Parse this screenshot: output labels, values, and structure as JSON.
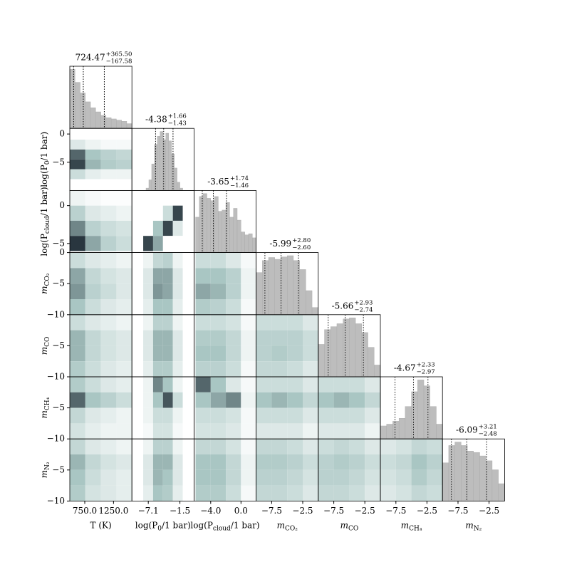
{
  "chart_data": {
    "type": "corner",
    "hist_color": "#bdbdbd",
    "quantile_color": "#000000",
    "cmap": [
      "#ffffff",
      "#a9c6c3",
      "#1b2630"
    ],
    "params": [
      {
        "label": {
          "main": "T (K)"
        },
        "lim": [
          490,
          1570
        ],
        "xticks": [
          {
            "value": 750,
            "label": "750.0"
          },
          {
            "value": 1250,
            "label": "1250.0"
          }
        ],
        "hist": {
          "bins": [
            490,
            580,
            670,
            760,
            850,
            940,
            1030,
            1120,
            1210,
            1300,
            1390,
            1480,
            1570
          ],
          "values": [
            100,
            78,
            60,
            45,
            35,
            28,
            22,
            18,
            16,
            14,
            12,
            8
          ]
        },
        "median": 724.47,
        "plus": {
          "value": 365.5,
          "label": "+365.50"
        },
        "minus": {
          "value": 167.58,
          "label": "−167.58"
        },
        "grid_edges": [
          490,
          760,
          1030,
          1300,
          1570
        ]
      },
      {
        "label": {
          "main": "log(P",
          "sub": "0",
          "tail": "/1 bar)"
        },
        "lim": [
          -10,
          1
        ],
        "xticks": [
          {
            "value": -7.1,
            "label": "−7.1"
          },
          {
            "value": -1.5,
            "label": "−1.5"
          }
        ],
        "yticks": [
          0,
          {
            "value": -5,
            "label": "−5"
          }
        ],
        "hist": {
          "bins": [
            -7.5,
            -7,
            -6.5,
            -6,
            -5.5,
            -5,
            -4.5,
            -4,
            -3.5,
            -3,
            -2.5,
            -2,
            -1.5,
            -1
          ],
          "values": [
            4,
            18,
            45,
            78,
            92,
            100,
            86,
            97,
            84,
            62,
            38,
            14,
            4
          ]
        },
        "median": -4.38,
        "plus": {
          "value": 1.66,
          "label": "+1.66"
        },
        "minus": {
          "value": 1.43,
          "label": "−1.43"
        },
        "grid_edges": [
          -8,
          -6.25,
          -4.5,
          -2.75,
          -1
        ],
        "density": [
          [
            [
              0.2,
              0.1,
              0.05,
              0.05
            ],
            [
              0.8,
              0.5,
              0.4,
              0.35
            ],
            [
              0.9,
              0.55,
              0.45,
              0.4
            ],
            [
              0.3,
              0.15,
              0.1,
              0.1
            ]
          ]
        ]
      },
      {
        "label": {
          "main": "log(P",
          "sub": "cloud",
          "tail": "/1 bar)"
        },
        "lim": [
          -6.2,
          2
        ],
        "xticks": [
          {
            "value": -4,
            "label": "−4.0"
          },
          {
            "value": 0,
            "label": "0.0"
          }
        ],
        "yticks": [
          0,
          {
            "value": -5,
            "label": "−5"
          }
        ],
        "hist": {
          "bins": [
            -6,
            -5.5,
            -5,
            -4.5,
            -4,
            -3.5,
            -3,
            -2.5,
            -2,
            -1.5,
            -1,
            -0.5,
            0,
            0.5,
            1,
            1.5,
            2
          ],
          "values": [
            60,
            95,
            100,
            92,
            88,
            95,
            70,
            72,
            85,
            60,
            75,
            55,
            35,
            30,
            32,
            25
          ]
        },
        "median": -3.65,
        "plus": {
          "value": 1.74,
          "label": "+1.74"
        },
        "minus": {
          "value": 1.46,
          "label": "−1.46"
        },
        "grid_edges": [
          -6,
          -4,
          -2,
          0,
          2
        ],
        "density": [
          [
            [
              0.1,
              0.05,
              0.02,
              0.02
            ],
            [
              0.4,
              0.2,
              0.15,
              0.1
            ],
            [
              0.7,
              0.4,
              0.3,
              0.25
            ],
            [
              0.95,
              0.6,
              0.4,
              0.3
            ]
          ],
          [
            [
              0,
              0,
              0,
              0
            ],
            [
              0,
              0,
              0.3,
              0.9
            ],
            [
              0,
              0.5,
              0.9,
              0.2
            ],
            [
              0.9,
              0.6,
              0,
              0
            ]
          ]
        ]
      },
      {
        "label": {
          "main": "m",
          "sub": "CO₂"
        },
        "lim": [
          -10,
          0
        ],
        "xticks": [
          {
            "value": -7.5,
            "label": "−7.5"
          },
          {
            "value": -2.5,
            "label": "−2.5"
          }
        ],
        "yticks": [
          0,
          {
            "value": -5,
            "label": "−5"
          },
          {
            "value": -10,
            "label": "−10"
          }
        ],
        "hist": {
          "bins": [
            -10,
            -9,
            -8,
            -7,
            -6,
            -5,
            -4,
            -3,
            -2,
            -1,
            0
          ],
          "values": [
            70,
            90,
            95,
            92,
            96,
            98,
            90,
            75,
            40,
            12
          ]
        },
        "median": -5.99,
        "plus": {
          "value": 2.8,
          "label": "+2.80"
        },
        "minus": {
          "value": 2.6,
          "label": "−2.60"
        },
        "grid_edges": [
          -10,
          -7.5,
          -5,
          -2.5,
          0
        ],
        "density": [
          [
            [
              0.3,
              0.2,
              0.15,
              0.1
            ],
            [
              0.6,
              0.35,
              0.25,
              0.2
            ],
            [
              0.65,
              0.4,
              0.3,
              0.2
            ],
            [
              0.5,
              0.3,
              0.2,
              0.15
            ]
          ],
          [
            [
              0.1,
              0.35,
              0.4,
              0.1
            ],
            [
              0.2,
              0.6,
              0.6,
              0.2
            ],
            [
              0.2,
              0.65,
              0.6,
              0.2
            ],
            [
              0.15,
              0.5,
              0.5,
              0.15
            ]
          ],
          [
            [
              0.3,
              0.3,
              0.2,
              0.05
            ],
            [
              0.5,
              0.5,
              0.4,
              0.1
            ],
            [
              0.6,
              0.55,
              0.4,
              0.1
            ],
            [
              0.45,
              0.4,
              0.3,
              0.05
            ]
          ]
        ]
      },
      {
        "label": {
          "main": "m",
          "sub": "CO"
        },
        "lim": [
          -10,
          0
        ],
        "xticks": [
          {
            "value": -7.5,
            "label": "−7.5"
          },
          {
            "value": -2.5,
            "label": "−2.5"
          }
        ],
        "yticks": [
          {
            "value": -5,
            "label": "−5"
          },
          {
            "value": -10,
            "label": "−10"
          }
        ],
        "hist": {
          "bins": [
            -10,
            -9,
            -8,
            -7,
            -6,
            -5,
            -4,
            -3,
            -2,
            -1,
            0
          ],
          "values": [
            55,
            80,
            85,
            90,
            98,
            100,
            90,
            75,
            50,
            20
          ]
        },
        "median": -5.66,
        "plus": {
          "value": 2.93,
          "label": "+2.93"
        },
        "minus": {
          "value": 2.74,
          "label": "−2.74"
        },
        "grid_edges": [
          -10,
          -7.5,
          -5,
          -2.5,
          0
        ],
        "density": [
          [
            [
              0.3,
              0.2,
              0.15,
              0.1
            ],
            [
              0.55,
              0.35,
              0.25,
              0.2
            ],
            [
              0.55,
              0.35,
              0.25,
              0.2
            ],
            [
              0.45,
              0.3,
              0.2,
              0.15
            ]
          ],
          [
            [
              0.1,
              0.4,
              0.4,
              0.1
            ],
            [
              0.2,
              0.55,
              0.55,
              0.2
            ],
            [
              0.2,
              0.55,
              0.55,
              0.2
            ],
            [
              0.15,
              0.45,
              0.45,
              0.15
            ]
          ],
          [
            [
              0.3,
              0.3,
              0.25,
              0.05
            ],
            [
              0.45,
              0.45,
              0.35,
              0.1
            ],
            [
              0.5,
              0.5,
              0.35,
              0.1
            ],
            [
              0.4,
              0.4,
              0.3,
              0.05
            ]
          ],
          [
            [
              0.3,
              0.3,
              0.3,
              0.2
            ],
            [
              0.4,
              0.4,
              0.4,
              0.3
            ],
            [
              0.4,
              0.45,
              0.4,
              0.3
            ],
            [
              0.35,
              0.35,
              0.3,
              0.2
            ]
          ]
        ]
      },
      {
        "label": {
          "main": "m",
          "sub": "CH₄"
        },
        "lim": [
          -10,
          0
        ],
        "xticks": [
          {
            "value": -7.5,
            "label": "−7.5"
          },
          {
            "value": -2.5,
            "label": "−2.5"
          }
        ],
        "yticks": [
          {
            "value": -5,
            "label": "−5"
          },
          {
            "value": -10,
            "label": "−10"
          }
        ],
        "hist": {
          "bins": [
            -10,
            -9,
            -8,
            -7,
            -6,
            -5,
            -4,
            -3,
            -2,
            -1,
            0
          ],
          "values": [
            22,
            25,
            30,
            35,
            55,
            80,
            100,
            90,
            55,
            25
          ]
        },
        "median": -4.67,
        "plus": {
          "value": 2.33,
          "label": "+2.33"
        },
        "minus": {
          "value": 2.97,
          "label": "−2.97"
        },
        "grid_edges": [
          -10,
          -7.5,
          -5,
          -2.5,
          0
        ],
        "density": [
          [
            [
              0.45,
              0.3,
              0.2,
              0.15
            ],
            [
              0.8,
              0.5,
              0.4,
              0.3
            ],
            [
              0.35,
              0.2,
              0.15,
              0.1
            ],
            [
              0.25,
              0.15,
              0.1,
              0.1
            ]
          ],
          [
            [
              0.1,
              0.7,
              0.5,
              0.1
            ],
            [
              0.1,
              0.5,
              0.85,
              0.3
            ],
            [
              0.1,
              0.3,
              0.3,
              0.1
            ],
            [
              0.05,
              0.25,
              0.25,
              0.05
            ]
          ],
          [
            [
              0.8,
              0.5,
              0.2,
              0.05
            ],
            [
              0.5,
              0.6,
              0.7,
              0.1
            ],
            [
              0.3,
              0.3,
              0.25,
              0.05
            ],
            [
              0.25,
              0.25,
              0.2,
              0.05
            ]
          ],
          [
            [
              0.3,
              0.3,
              0.3,
              0.2
            ],
            [
              0.5,
              0.55,
              0.5,
              0.35
            ],
            [
              0.3,
              0.3,
              0.3,
              0.2
            ],
            [
              0.2,
              0.2,
              0.2,
              0.1
            ]
          ],
          [
            [
              0.3,
              0.3,
              0.3,
              0.2
            ],
            [
              0.5,
              0.55,
              0.5,
              0.35
            ],
            [
              0.3,
              0.3,
              0.3,
              0.2
            ],
            [
              0.2,
              0.2,
              0.2,
              0.1
            ]
          ]
        ]
      },
      {
        "label": {
          "main": "m",
          "sub": "N₂"
        },
        "lim": [
          -10,
          0
        ],
        "xticks": [
          {
            "value": -7.5,
            "label": "−7.5"
          },
          {
            "value": -2.5,
            "label": "−2.5"
          }
        ],
        "yticks": [
          {
            "value": -5,
            "label": "−5"
          },
          {
            "value": -10,
            "label": "−10"
          }
        ],
        "hist": {
          "bins": [
            -10,
            -9,
            -8,
            -7,
            -6,
            -5,
            -4,
            -3,
            -2,
            -1,
            0
          ],
          "values": [
            55,
            80,
            85,
            80,
            72,
            70,
            65,
            58,
            45,
            25
          ]
        },
        "median": -6.09,
        "plus": {
          "value": 3.21,
          "label": "+3.21"
        },
        "minus": {
          "value": 2.48,
          "label": "−2.48"
        },
        "grid_edges": [
          -10,
          -7.5,
          -5,
          -2.5,
          0
        ],
        "density": [
          [
            [
              0.35,
              0.2,
              0.15,
              0.1
            ],
            [
              0.55,
              0.35,
              0.25,
              0.2
            ],
            [
              0.5,
              0.3,
              0.2,
              0.15
            ],
            [
              0.45,
              0.25,
              0.2,
              0.15
            ]
          ],
          [
            [
              0.1,
              0.4,
              0.4,
              0.1
            ],
            [
              0.2,
              0.55,
              0.55,
              0.2
            ],
            [
              0.2,
              0.55,
              0.5,
              0.2
            ],
            [
              0.15,
              0.5,
              0.45,
              0.15
            ]
          ],
          [
            [
              0.35,
              0.35,
              0.25,
              0.05
            ],
            [
              0.5,
              0.5,
              0.35,
              0.1
            ],
            [
              0.5,
              0.5,
              0.35,
              0.1
            ],
            [
              0.45,
              0.45,
              0.3,
              0.05
            ]
          ],
          [
            [
              0.35,
              0.35,
              0.3,
              0.2
            ],
            [
              0.45,
              0.45,
              0.4,
              0.3
            ],
            [
              0.4,
              0.4,
              0.35,
              0.25
            ],
            [
              0.35,
              0.35,
              0.3,
              0.2
            ]
          ],
          [
            [
              0.3,
              0.35,
              0.3,
              0.2
            ],
            [
              0.4,
              0.45,
              0.4,
              0.3
            ],
            [
              0.4,
              0.4,
              0.35,
              0.25
            ],
            [
              0.35,
              0.35,
              0.3,
              0.2
            ]
          ],
          [
            [
              0.2,
              0.25,
              0.35,
              0.3
            ],
            [
              0.3,
              0.35,
              0.5,
              0.4
            ],
            [
              0.25,
              0.3,
              0.45,
              0.35
            ],
            [
              0.2,
              0.25,
              0.35,
              0.3
            ]
          ]
        ]
      }
    ]
  }
}
